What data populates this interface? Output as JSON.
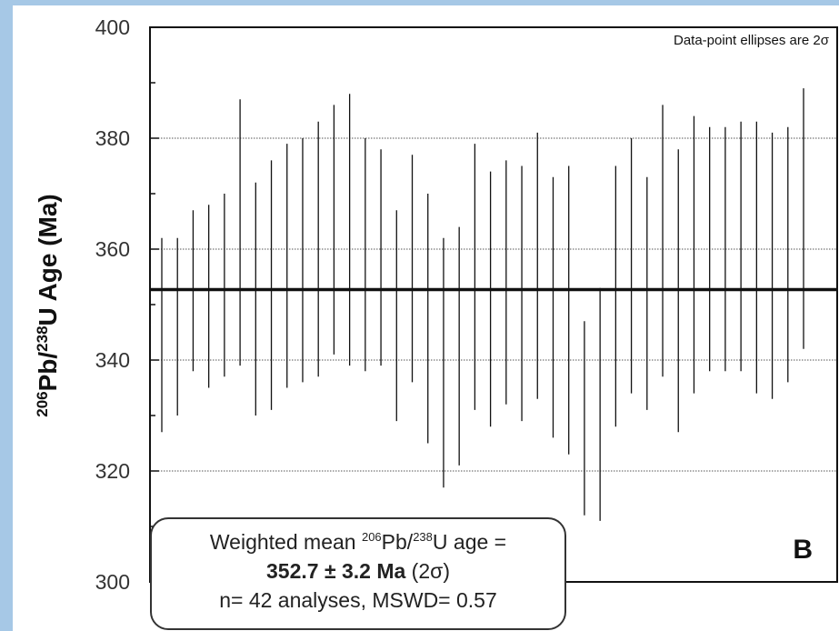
{
  "chart_data": {
    "type": "scatter",
    "subtype": "error-bar ranking plot",
    "ylabel": {
      "iso1_mass": "206",
      "iso1_element": "Pb",
      "iso2_mass": "238",
      "iso2_element": "U Age (Ma)"
    },
    "ylim": [
      300,
      400
    ],
    "yticks": [
      300,
      320,
      340,
      360,
      380,
      400
    ],
    "grid": "horizontal dotted at 320, 340, 360, 380",
    "corner_note": "Data-point ellipses are 2σ",
    "panel_label": "B",
    "mean_line": 352.7,
    "series": [
      {
        "bars": [
          [
            327,
            362
          ],
          [
            330,
            362
          ],
          [
            338,
            367
          ],
          [
            335,
            368
          ],
          [
            337,
            370
          ],
          [
            339,
            387
          ],
          [
            330,
            372
          ],
          [
            331,
            376
          ],
          [
            335,
            379
          ],
          [
            336,
            380
          ],
          [
            337,
            383
          ],
          [
            341,
            386
          ],
          [
            339,
            388
          ],
          [
            338,
            380
          ],
          [
            339,
            378
          ],
          [
            329,
            367
          ],
          [
            336,
            377
          ],
          [
            325,
            370
          ],
          [
            317,
            362
          ],
          [
            321,
            364
          ],
          [
            331,
            379
          ],
          [
            328,
            374
          ],
          [
            332,
            376
          ],
          [
            329,
            375
          ],
          [
            333,
            381
          ],
          [
            326,
            373
          ],
          [
            323,
            375
          ],
          [
            312,
            347
          ],
          [
            311,
            353
          ],
          [
            328,
            375
          ],
          [
            334,
            380
          ],
          [
            331,
            373
          ],
          [
            337,
            386
          ],
          [
            327,
            378
          ],
          [
            334,
            384
          ],
          [
            338,
            382
          ],
          [
            338,
            382
          ],
          [
            338,
            383
          ],
          [
            334,
            383
          ],
          [
            333,
            381
          ],
          [
            336,
            382
          ],
          [
            342,
            389
          ]
        ]
      }
    ],
    "summary": {
      "line1_prefix": "Weighted mean ",
      "line1_iso1_mass": "206",
      "line1_iso1_element": "Pb/",
      "line1_iso2_mass": "238",
      "line1_suffix": "U age =",
      "line2_value": "352.7 ± 3.2 Ma",
      "line2_suffix": "(2σ)",
      "line3": "n= 42 analyses, MSWD= 0.57"
    }
  }
}
